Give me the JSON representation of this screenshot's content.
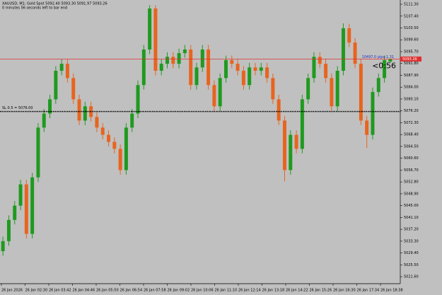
{
  "chart_data": {
    "type": "candlestick",
    "title": "XAUUSD, M1:  Gold Spot  5092.40 5093.30 5091.97 5093.26",
    "subtitle": "0 minutes 56 seconds left to bar end",
    "up_color": "#1f9a1f",
    "down_color": "#e8641e",
    "ylim": [
      5019.3,
      5112.7
    ],
    "yticks": [
      {
        "value": 5021.6,
        "label": "5021.60"
      },
      {
        "value": 5025.5,
        "label": "5025.50"
      },
      {
        "value": 5029.4,
        "label": "5029.40"
      },
      {
        "value": 5033.3,
        "label": "5033.30"
      },
      {
        "value": 5037.2,
        "label": "5037.20"
      },
      {
        "value": 5041.1,
        "label": "5041.10"
      },
      {
        "value": 5045,
        "label": "5045.00"
      },
      {
        "value": 5048.9,
        "label": "5048.90"
      },
      {
        "value": 5052.8,
        "label": "5052.80"
      },
      {
        "value": 5056.7,
        "label": "5056.70"
      },
      {
        "value": 5060.6,
        "label": "5060.60"
      },
      {
        "value": 5064.5,
        "label": "5064.50"
      },
      {
        "value": 5068.4,
        "label": "5068.40"
      },
      {
        "value": 5072.3,
        "label": "5072.30"
      },
      {
        "value": 5076.2,
        "label": "5076.20"
      },
      {
        "value": 5080.1,
        "label": "5080.10"
      },
      {
        "value": 5084,
        "label": "5084.00"
      },
      {
        "value": 5087.9,
        "label": "5087.90"
      },
      {
        "value": 5091.8,
        "label": "5091.80"
      },
      {
        "value": 5095.7,
        "label": "5095.70"
      },
      {
        "value": 5099.6,
        "label": "5099.60"
      },
      {
        "value": 5103.5,
        "label": "5103.50"
      },
      {
        "value": 5107.4,
        "label": "5107.40"
      },
      {
        "value": 5111.3,
        "label": "5111.30"
      }
    ],
    "xticks": [
      "26 Jan 2026",
      "26 Jan 02:30",
      "26 Jan 03:42",
      "26 Jan 04:46",
      "26 Jan 05:50",
      "26 Jan 06:54",
      "26 Jan 07:58",
      "26 Jan 09:02",
      "26 Jan 10:06",
      "26 Jan 11:10",
      "26 Jan 12:14",
      "26 Jan 13:18",
      "26 Jan 14:22",
      "26 Jan 15:26",
      "26 Jan 16:30",
      "26 Jan 17:34",
      "26 Jan 18:38"
    ],
    "open": [
      5030.0,
      5033.3,
      5040.3,
      5045.0,
      5052.0,
      5035.7,
      5054.3,
      5070.7,
      5075.3,
      5080.0,
      5089.4,
      5091.7,
      5087.0,
      5080.0,
      5073.0,
      5077.7,
      5074.2,
      5070.7,
      5068.3,
      5066.0,
      5063.7,
      5056.7,
      5070.7,
      5075.3,
      5084.7,
      5096.4,
      5109.9,
      5089.4,
      5091.7,
      5094.0,
      5091.7,
      5095.2,
      5096.4,
      5084.7,
      5090.5,
      5096.4,
      5084.7,
      5077.7,
      5087.0,
      5092.9,
      5091.7,
      5089.4,
      5084.7,
      5090.5,
      5089.4,
      5090.5,
      5087.0,
      5080.0,
      5073.0,
      5056.7,
      5068.3,
      5063.7,
      5080.0,
      5087.0,
      5094.0,
      5091.7,
      5087.0,
      5077.7,
      5089.4,
      5103.4,
      5098.7,
      5091.7,
      5073.0,
      5068.3,
      5082.4,
      5087.0,
      5092.4
    ],
    "high": [
      5034.8,
      5041.8,
      5046.5,
      5053.5,
      5053.5,
      5055.8,
      5072.2,
      5076.8,
      5081.5,
      5090.9,
      5093.2,
      5093.2,
      5088.5,
      5081.5,
      5079.2,
      5079.2,
      5075.7,
      5072.2,
      5069.8,
      5067.5,
      5065.2,
      5072.2,
      5076.8,
      5086.2,
      5097.9,
      5111.0,
      5111.0,
      5093.2,
      5095.5,
      5095.5,
      5096.7,
      5097.9,
      5097.9,
      5092.0,
      5097.9,
      5097.9,
      5086.2,
      5088.5,
      5094.4,
      5094.4,
      5093.2,
      5090.9,
      5092.0,
      5092.0,
      5092.0,
      5092.0,
      5088.5,
      5081.5,
      5074.5,
      5069.8,
      5069.8,
      5081.5,
      5088.5,
      5095.5,
      5095.5,
      5093.2,
      5088.5,
      5090.9,
      5105.0,
      5104.9,
      5100.2,
      5093.2,
      5074.5,
      5083.9,
      5088.5,
      5094.4,
      5093.3
    ],
    "low": [
      5028.5,
      5031.8,
      5038.8,
      5043.5,
      5034.2,
      5034.2,
      5052.8,
      5069.2,
      5073.8,
      5078.5,
      5087.9,
      5085.5,
      5078.5,
      5071.5,
      5071.5,
      5072.7,
      5069.2,
      5066.8,
      5064.5,
      5062.2,
      5055.2,
      5055.2,
      5069.2,
      5073.8,
      5083.2,
      5094.9,
      5087.9,
      5087.9,
      5090.2,
      5090.2,
      5090.2,
      5093.7,
      5083.2,
      5083.2,
      5089.0,
      5083.2,
      5076.2,
      5076.2,
      5085.5,
      5090.2,
      5087.9,
      5083.2,
      5083.2,
      5087.9,
      5087.9,
      5085.5,
      5078.5,
      5071.5,
      5053.0,
      5055.2,
      5062.2,
      5062.2,
      5078.5,
      5085.5,
      5090.2,
      5085.5,
      5076.2,
      5076.2,
      5087.9,
      5097.2,
      5090.2,
      5071.5,
      5064.0,
      5066.8,
      5080.9,
      5085.5,
      5091.97
    ],
    "close": [
      5033.3,
      5040.3,
      5045.0,
      5052.0,
      5035.7,
      5054.3,
      5070.7,
      5075.3,
      5080.0,
      5089.4,
      5091.7,
      5087.0,
      5080.0,
      5073.0,
      5077.7,
      5074.2,
      5070.7,
      5068.3,
      5066.0,
      5063.7,
      5056.7,
      5070.7,
      5075.3,
      5084.7,
      5096.4,
      5109.9,
      5089.4,
      5091.7,
      5094.0,
      5091.7,
      5095.2,
      5096.4,
      5084.7,
      5090.5,
      5096.4,
      5084.7,
      5077.7,
      5087.0,
      5092.9,
      5091.7,
      5089.4,
      5084.7,
      5090.5,
      5089.4,
      5090.5,
      5087.0,
      5080.0,
      5073.0,
      5056.7,
      5068.3,
      5063.7,
      5080.0,
      5087.0,
      5094.0,
      5091.7,
      5087.0,
      5077.7,
      5089.4,
      5103.4,
      5098.7,
      5091.7,
      5073.0,
      5068.3,
      5082.4,
      5087.0,
      5092.9,
      5093.26
    ],
    "price_line": {
      "value": 5093.26,
      "label": "5093.26",
      "color": "#e03030"
    },
    "pips_label": "10497.0 pips:1.31",
    "timer": "<0:56",
    "sl_line": {
      "value": 5076.0,
      "label": "SL 0.5 = 5076.00"
    }
  }
}
